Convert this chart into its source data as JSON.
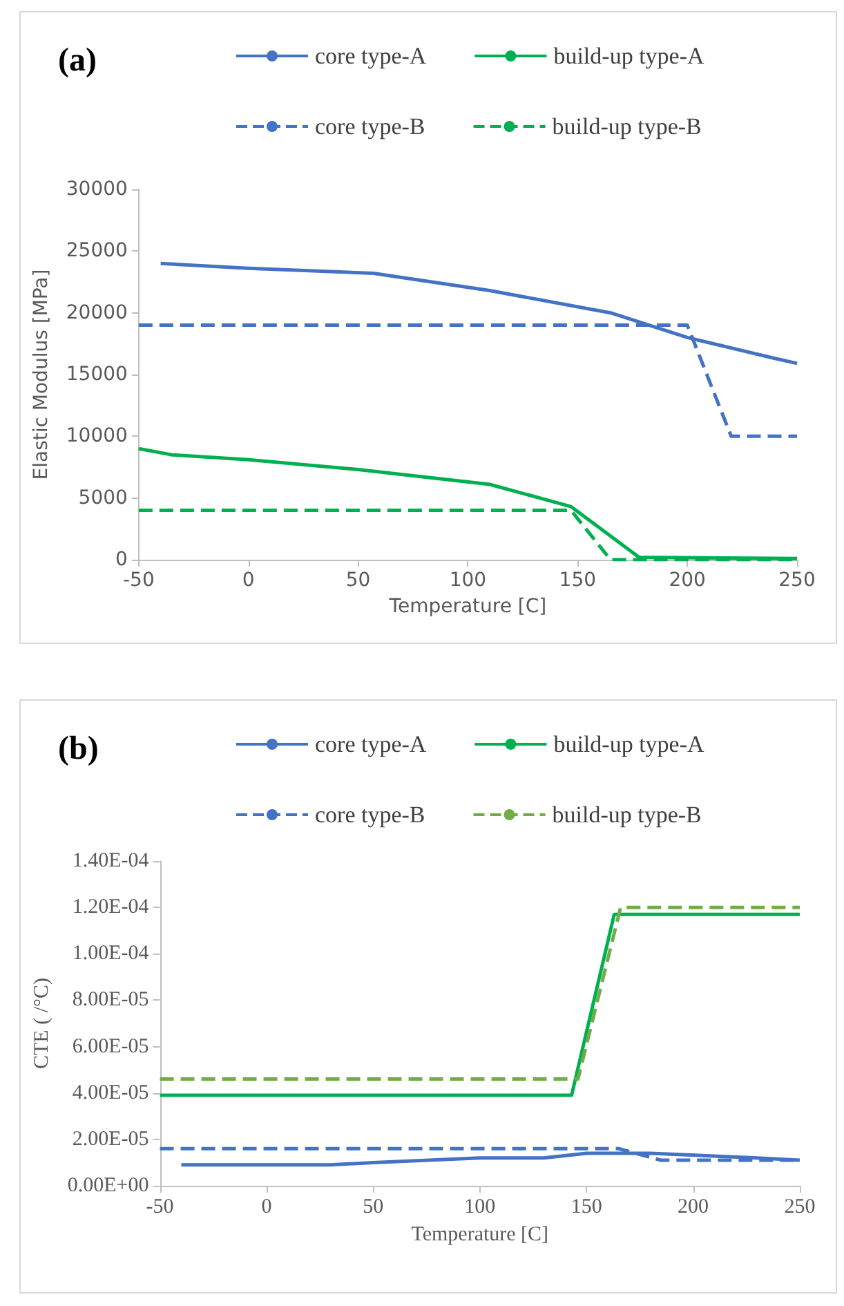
{
  "chart_data": [
    {
      "type": "line",
      "title": "(a)",
      "xlabel": "Temperature [C]",
      "ylabel": "Elastic Modulus [MPa]",
      "xlim": [
        -50,
        250
      ],
      "xticks": [
        -50,
        0,
        50,
        100,
        150,
        200,
        250
      ],
      "ylim": [
        0,
        30000
      ],
      "yticks": [
        0,
        5000,
        10000,
        15000,
        20000,
        25000,
        30000
      ],
      "grid": false,
      "legend": "top",
      "marker": "none",
      "series": [
        {
          "name": "core type-A",
          "color": "#4472c4",
          "line_style": "solid",
          "x": [
            -40,
            0,
            57,
            110,
            165,
            200,
            240,
            250
          ],
          "values": [
            24000,
            23600,
            23200,
            21800,
            20000,
            18000,
            16300,
            15900
          ]
        },
        {
          "name": "build-up type-A",
          "color": "#00b050",
          "line_style": "solid",
          "x": [
            -50,
            -35,
            0,
            50,
            110,
            147,
            178,
            250
          ],
          "values": [
            9000,
            8500,
            8100,
            7300,
            6100,
            4300,
            200,
            100
          ]
        },
        {
          "name": "core type-B",
          "color": "#4472c4",
          "line_style": "dashed",
          "x": [
            -50,
            200,
            220,
            250
          ],
          "values": [
            19000,
            19000,
            10000,
            10000
          ]
        },
        {
          "name": "build-up type-B",
          "color": "#00b050",
          "line_style": "dashed",
          "x": [
            -50,
            147,
            165,
            250
          ],
          "values": [
            4000,
            4000,
            0,
            0
          ]
        }
      ]
    },
    {
      "type": "line",
      "title": "(b)",
      "xlabel": "Temperature [C]",
      "ylabel": "CTE ( /°C)",
      "xlim": [
        -50,
        250
      ],
      "xticks": [
        -50,
        0,
        50,
        100,
        150,
        200,
        250
      ],
      "ylim": [
        0,
        0.00014
      ],
      "yticks": [
        {
          "value": 0,
          "label": "0.00E+00"
        },
        {
          "value": 2e-05,
          "label": "2.00E-05"
        },
        {
          "value": 4e-05,
          "label": "4.00E-05"
        },
        {
          "value": 6e-05,
          "label": "6.00E-05"
        },
        {
          "value": 8e-05,
          "label": "8.00E-05"
        },
        {
          "value": 0.0001,
          "label": "1.00E-04"
        },
        {
          "value": 0.00012,
          "label": "1.20E-04"
        },
        {
          "value": 0.00014,
          "label": "1.40E-04"
        }
      ],
      "grid": false,
      "legend": "top",
      "marker": "none",
      "series": [
        {
          "name": "core type-A",
          "color": "#4472c4",
          "line_style": "solid",
          "x": [
            -40,
            30,
            50,
            100,
            130,
            150,
            180,
            230,
            250
          ],
          "values": [
            9e-06,
            9e-06,
            1e-05,
            1.2e-05,
            1.2e-05,
            1.4e-05,
            1.4e-05,
            1.2e-05,
            1.1e-05
          ]
        },
        {
          "name": "build-up type-A",
          "color": "#00b050",
          "line_style": "solid",
          "x": [
            -50,
            143,
            163,
            250
          ],
          "values": [
            3.9e-05,
            3.9e-05,
            0.000117,
            0.000117
          ]
        },
        {
          "name": "core type-B",
          "color": "#4472c4",
          "line_style": "dashed",
          "x": [
            -50,
            165,
            185,
            250
          ],
          "values": [
            1.6e-05,
            1.6e-05,
            1.1e-05,
            1.1e-05
          ]
        },
        {
          "name": "build-up type-B",
          "color": "#70ad47",
          "line_style": "dashed",
          "x": [
            -50,
            146,
            166,
            250
          ],
          "values": [
            4.6e-05,
            4.6e-05,
            0.00012,
            0.00012
          ]
        }
      ]
    }
  ]
}
